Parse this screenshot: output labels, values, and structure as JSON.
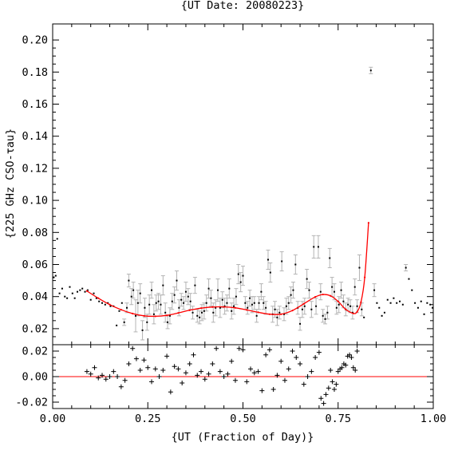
{
  "chart_data": {
    "type": "scatter",
    "title": "{UT Date: 20080223}",
    "xlabel": "{UT (Fraction of Day)}",
    "ylabel": "{225 GHz CSO-τau}",
    "xlim": [
      0.0,
      1.0
    ],
    "ylim": [
      0.01,
      0.21
    ],
    "xticks": [
      "0.00",
      "0.25",
      "0.50",
      "0.75",
      "1.00"
    ],
    "yticks": [
      "0.02",
      "0.04",
      "0.06",
      "0.08",
      "0.10",
      "0.12",
      "0.14",
      "0.16",
      "0.18",
      "0.20"
    ],
    "residual_ylim": [
      -0.025,
      0.025
    ],
    "residual_yticks": [
      "-0.02",
      "0.00",
      "0.02"
    ],
    "series": [
      {
        "kind": "measurements with error bars",
        "color": "#000000",
        "errorbar_color": "#b4b4b4",
        "points": [
          [
            0.003,
            0.052,
            0.001
          ],
          [
            0.008,
            0.053,
            0.001
          ],
          [
            0.012,
            0.076,
            0.001
          ],
          [
            0.018,
            0.042,
            0.001
          ],
          [
            0.025,
            0.045,
            0.001
          ],
          [
            0.032,
            0.04,
            0.001
          ],
          [
            0.038,
            0.039,
            0.001
          ],
          [
            0.045,
            0.046,
            0.001
          ],
          [
            0.052,
            0.042,
            0.001
          ],
          [
            0.058,
            0.039,
            0.001
          ],
          [
            0.065,
            0.043,
            0.001
          ],
          [
            0.072,
            0.044,
            0.001
          ],
          [
            0.078,
            0.045,
            0.001
          ],
          [
            0.085,
            0.043,
            0.001
          ],
          [
            0.092,
            0.044,
            0.001
          ],
          [
            0.1,
            0.038,
            0.001
          ],
          [
            0.108,
            0.042,
            0.001
          ],
          [
            0.115,
            0.039,
            0.001
          ],
          [
            0.122,
            0.037,
            0.001
          ],
          [
            0.13,
            0.036,
            0.001
          ],
          [
            0.138,
            0.035,
            0.001
          ],
          [
            0.145,
            0.036,
            0.001
          ],
          [
            0.152,
            0.034,
            0.001
          ],
          [
            0.16,
            0.034,
            0.001
          ],
          [
            0.168,
            0.022,
            0.001
          ],
          [
            0.175,
            0.031,
            0.001
          ],
          [
            0.182,
            0.036,
            0.001
          ],
          [
            0.188,
            0.024,
            0.002
          ],
          [
            0.195,
            0.033,
            0.003
          ],
          [
            0.2,
            0.05,
            0.004
          ],
          [
            0.207,
            0.04,
            0.005
          ],
          [
            0.212,
            0.044,
            0.005
          ],
          [
            0.218,
            0.028,
            0.01
          ],
          [
            0.224,
            0.036,
            0.008
          ],
          [
            0.23,
            0.042,
            0.006
          ],
          [
            0.236,
            0.019,
            0.006
          ],
          [
            0.242,
            0.033,
            0.006
          ],
          [
            0.248,
            0.024,
            0.005
          ],
          [
            0.254,
            0.035,
            0.006
          ],
          [
            0.26,
            0.044,
            0.005
          ],
          [
            0.266,
            0.029,
            0.006
          ],
          [
            0.272,
            0.036,
            0.005
          ],
          [
            0.278,
            0.037,
            0.005
          ],
          [
            0.284,
            0.035,
            0.006
          ],
          [
            0.29,
            0.047,
            0.006
          ],
          [
            0.296,
            0.03,
            0.006
          ],
          [
            0.302,
            0.024,
            0.004
          ],
          [
            0.308,
            0.028,
            0.005
          ],
          [
            0.314,
            0.037,
            0.005
          ],
          [
            0.32,
            0.041,
            0.005
          ],
          [
            0.326,
            0.05,
            0.006
          ],
          [
            0.332,
            0.033,
            0.005
          ],
          [
            0.338,
            0.038,
            0.004
          ],
          [
            0.344,
            0.036,
            0.004
          ],
          [
            0.35,
            0.043,
            0.006
          ],
          [
            0.356,
            0.04,
            0.005
          ],
          [
            0.362,
            0.037,
            0.005
          ],
          [
            0.368,
            0.03,
            0.004
          ],
          [
            0.374,
            0.047,
            0.005
          ],
          [
            0.38,
            0.028,
            0.004
          ],
          [
            0.386,
            0.027,
            0.004
          ],
          [
            0.392,
            0.03,
            0.005
          ],
          [
            0.398,
            0.031,
            0.005
          ],
          [
            0.404,
            0.036,
            0.005
          ],
          [
            0.41,
            0.045,
            0.006
          ],
          [
            0.416,
            0.039,
            0.005
          ],
          [
            0.422,
            0.03,
            0.006
          ],
          [
            0.428,
            0.033,
            0.005
          ],
          [
            0.434,
            0.044,
            0.007
          ],
          [
            0.44,
            0.033,
            0.006
          ],
          [
            0.446,
            0.038,
            0.005
          ],
          [
            0.452,
            0.034,
            0.005
          ],
          [
            0.458,
            0.036,
            0.005
          ],
          [
            0.464,
            0.045,
            0.006
          ],
          [
            0.47,
            0.031,
            0.005
          ],
          [
            0.476,
            0.034,
            0.005
          ],
          [
            0.482,
            0.04,
            0.005
          ],
          [
            0.488,
            0.054,
            0.006
          ],
          [
            0.494,
            0.049,
            0.006
          ],
          [
            0.5,
            0.053,
            0.006
          ],
          [
            0.506,
            0.036,
            0.004
          ],
          [
            0.512,
            0.033,
            0.004
          ],
          [
            0.518,
            0.039,
            0.005
          ],
          [
            0.524,
            0.035,
            0.005
          ],
          [
            0.53,
            0.036,
            0.004
          ],
          [
            0.536,
            0.028,
            0.004
          ],
          [
            0.542,
            0.036,
            0.004
          ],
          [
            0.548,
            0.043,
            0.005
          ],
          [
            0.554,
            0.036,
            0.004
          ],
          [
            0.56,
            0.033,
            0.004
          ],
          [
            0.566,
            0.063,
            0.006
          ],
          [
            0.572,
            0.055,
            0.006
          ],
          [
            0.578,
            0.029,
            0.005
          ],
          [
            0.584,
            0.032,
            0.005
          ],
          [
            0.59,
            0.027,
            0.005
          ],
          [
            0.596,
            0.03,
            0.004
          ],
          [
            0.602,
            0.062,
            0.006
          ],
          [
            0.608,
            0.029,
            0.004
          ],
          [
            0.614,
            0.034,
            0.005
          ],
          [
            0.62,
            0.036,
            0.004
          ],
          [
            0.626,
            0.041,
            0.005
          ],
          [
            0.632,
            0.044,
            0.005
          ],
          [
            0.638,
            0.06,
            0.006
          ],
          [
            0.644,
            0.033,
            0.004
          ],
          [
            0.65,
            0.023,
            0.004
          ],
          [
            0.656,
            0.032,
            0.005
          ],
          [
            0.662,
            0.034,
            0.005
          ],
          [
            0.668,
            0.051,
            0.006
          ],
          [
            0.674,
            0.044,
            0.005
          ],
          [
            0.68,
            0.032,
            0.005
          ],
          [
            0.686,
            0.071,
            0.007
          ],
          [
            0.692,
            0.034,
            0.005
          ],
          [
            0.698,
            0.071,
            0.007
          ],
          [
            0.704,
            0.043,
            0.005
          ],
          [
            0.71,
            0.028,
            0.004
          ],
          [
            0.716,
            0.026,
            0.003
          ],
          [
            0.722,
            0.03,
            0.004
          ],
          [
            0.728,
            0.064,
            0.006
          ],
          [
            0.734,
            0.046,
            0.006
          ],
          [
            0.74,
            0.043,
            0.005
          ],
          [
            0.746,
            0.033,
            0.004
          ],
          [
            0.752,
            0.035,
            0.005
          ],
          [
            0.758,
            0.044,
            0.005
          ],
          [
            0.764,
            0.037,
            0.004
          ],
          [
            0.77,
            0.032,
            0.004
          ],
          [
            0.776,
            0.035,
            0.004
          ],
          [
            0.782,
            0.034,
            0.004
          ],
          [
            0.788,
            0.03,
            0.004
          ],
          [
            0.794,
            0.046,
            0.005
          ],
          [
            0.8,
            0.034,
            0.004
          ],
          [
            0.806,
            0.058,
            0.008
          ],
          [
            0.812,
            0.032,
            0.004
          ],
          [
            0.818,
            0.027,
            0.001
          ],
          [
            0.836,
            0.181,
            0.002
          ],
          [
            0.845,
            0.044,
            0.004
          ],
          [
            0.852,
            0.036,
            0.001
          ],
          [
            0.858,
            0.033,
            0.001
          ],
          [
            0.865,
            0.028,
            0.001
          ],
          [
            0.872,
            0.03,
            0.001
          ],
          [
            0.88,
            0.038,
            0.001
          ],
          [
            0.888,
            0.036,
            0.001
          ],
          [
            0.896,
            0.039,
            0.001
          ],
          [
            0.904,
            0.036,
            0.001
          ],
          [
            0.912,
            0.037,
            0.001
          ],
          [
            0.92,
            0.035,
            0.001
          ],
          [
            0.928,
            0.058,
            0.002
          ],
          [
            0.936,
            0.051,
            0.001
          ],
          [
            0.944,
            0.044,
            0.001
          ],
          [
            0.952,
            0.036,
            0.001
          ],
          [
            0.96,
            0.033,
            0.001
          ],
          [
            0.968,
            0.037,
            0.001
          ],
          [
            0.976,
            0.029,
            0.001
          ],
          [
            0.984,
            0.036,
            0.001
          ],
          [
            0.992,
            0.035,
            0.001
          ],
          [
            0.998,
            0.033,
            0.001
          ]
        ]
      },
      {
        "kind": "fit curve",
        "color": "#ff0000",
        "x": [
          0.09,
          0.12,
          0.15,
          0.18,
          0.21,
          0.24,
          0.27,
          0.3,
          0.33,
          0.36,
          0.39,
          0.42,
          0.45,
          0.48,
          0.51,
          0.54,
          0.57,
          0.6,
          0.63,
          0.66,
          0.69,
          0.71,
          0.73,
          0.75,
          0.77,
          0.79,
          0.8,
          0.81,
          0.82,
          0.83
        ],
        "y": [
          0.0435,
          0.039,
          0.035,
          0.0318,
          0.0294,
          0.028,
          0.0277,
          0.0283,
          0.0298,
          0.0315,
          0.0328,
          0.0335,
          0.0336,
          0.033,
          0.0317,
          0.0302,
          0.029,
          0.029,
          0.0313,
          0.0355,
          0.0398,
          0.0413,
          0.0405,
          0.037,
          0.032,
          0.0295,
          0.0305,
          0.0365,
          0.052,
          0.086
        ]
      }
    ],
    "residual_series": {
      "kind": "fit residuals",
      "color": "#000000",
      "zero_line_color": "#ff0000",
      "points": [
        [
          0.09,
          0.004
        ],
        [
          0.1,
          0.002
        ],
        [
          0.11,
          0.007
        ],
        [
          0.12,
          -0.001
        ],
        [
          0.13,
          0.001
        ],
        [
          0.14,
          -0.002
        ],
        [
          0.15,
          0.0
        ],
        [
          0.16,
          0.004
        ],
        [
          0.17,
          0.0
        ],
        [
          0.18,
          -0.008
        ],
        [
          0.19,
          -0.003
        ],
        [
          0.2,
          0.01
        ],
        [
          0.21,
          0.022
        ],
        [
          0.22,
          0.014
        ],
        [
          0.23,
          0.005
        ],
        [
          0.24,
          0.013
        ],
        [
          0.25,
          0.007
        ],
        [
          0.26,
          -0.004
        ],
        [
          0.27,
          0.006
        ],
        [
          0.28,
          0.0
        ],
        [
          0.29,
          0.005
        ],
        [
          0.3,
          0.016
        ],
        [
          0.31,
          -0.012
        ],
        [
          0.32,
          0.008
        ],
        [
          0.33,
          0.006
        ],
        [
          0.34,
          -0.005
        ],
        [
          0.35,
          0.003
        ],
        [
          0.36,
          0.01
        ],
        [
          0.37,
          0.017
        ],
        [
          0.38,
          0.001
        ],
        [
          0.39,
          0.004
        ],
        [
          0.4,
          -0.002
        ],
        [
          0.41,
          0.002
        ],
        [
          0.42,
          0.01
        ],
        [
          0.43,
          0.022
        ],
        [
          0.44,
          0.004
        ],
        [
          0.45,
          0.0
        ],
        [
          0.46,
          0.002
        ],
        [
          0.47,
          0.012
        ],
        [
          0.48,
          -0.003
        ],
        [
          0.49,
          0.022
        ],
        [
          0.5,
          0.021
        ],
        [
          0.51,
          -0.004
        ],
        [
          0.52,
          0.006
        ],
        [
          0.53,
          0.003
        ],
        [
          0.54,
          0.004
        ],
        [
          0.55,
          -0.011
        ],
        [
          0.56,
          0.017
        ],
        [
          0.57,
          0.021
        ],
        [
          0.58,
          -0.01
        ],
        [
          0.59,
          0.001
        ],
        [
          0.6,
          0.012
        ],
        [
          0.61,
          -0.003
        ],
        [
          0.62,
          0.006
        ],
        [
          0.63,
          0.02
        ],
        [
          0.64,
          0.015
        ],
        [
          0.65,
          0.01
        ],
        [
          0.66,
          -0.006
        ],
        [
          0.67,
          0.0
        ],
        [
          0.68,
          0.004
        ],
        [
          0.69,
          0.015
        ],
        [
          0.7,
          0.019
        ],
        [
          0.705,
          -0.017
        ],
        [
          0.712,
          -0.021
        ],
        [
          0.718,
          -0.014
        ],
        [
          0.725,
          -0.009
        ],
        [
          0.73,
          0.005
        ],
        [
          0.735,
          -0.004
        ],
        [
          0.74,
          -0.01
        ],
        [
          0.745,
          -0.006
        ],
        [
          0.75,
          0.004
        ],
        [
          0.755,
          0.006
        ],
        [
          0.76,
          0.007
        ],
        [
          0.765,
          0.01
        ],
        [
          0.77,
          0.009
        ],
        [
          0.775,
          0.016
        ],
        [
          0.78,
          0.017
        ],
        [
          0.785,
          0.015
        ],
        [
          0.79,
          0.007
        ],
        [
          0.795,
          0.005
        ],
        [
          0.8,
          0.02
        ]
      ]
    },
    "grid": false,
    "legend": "none"
  }
}
